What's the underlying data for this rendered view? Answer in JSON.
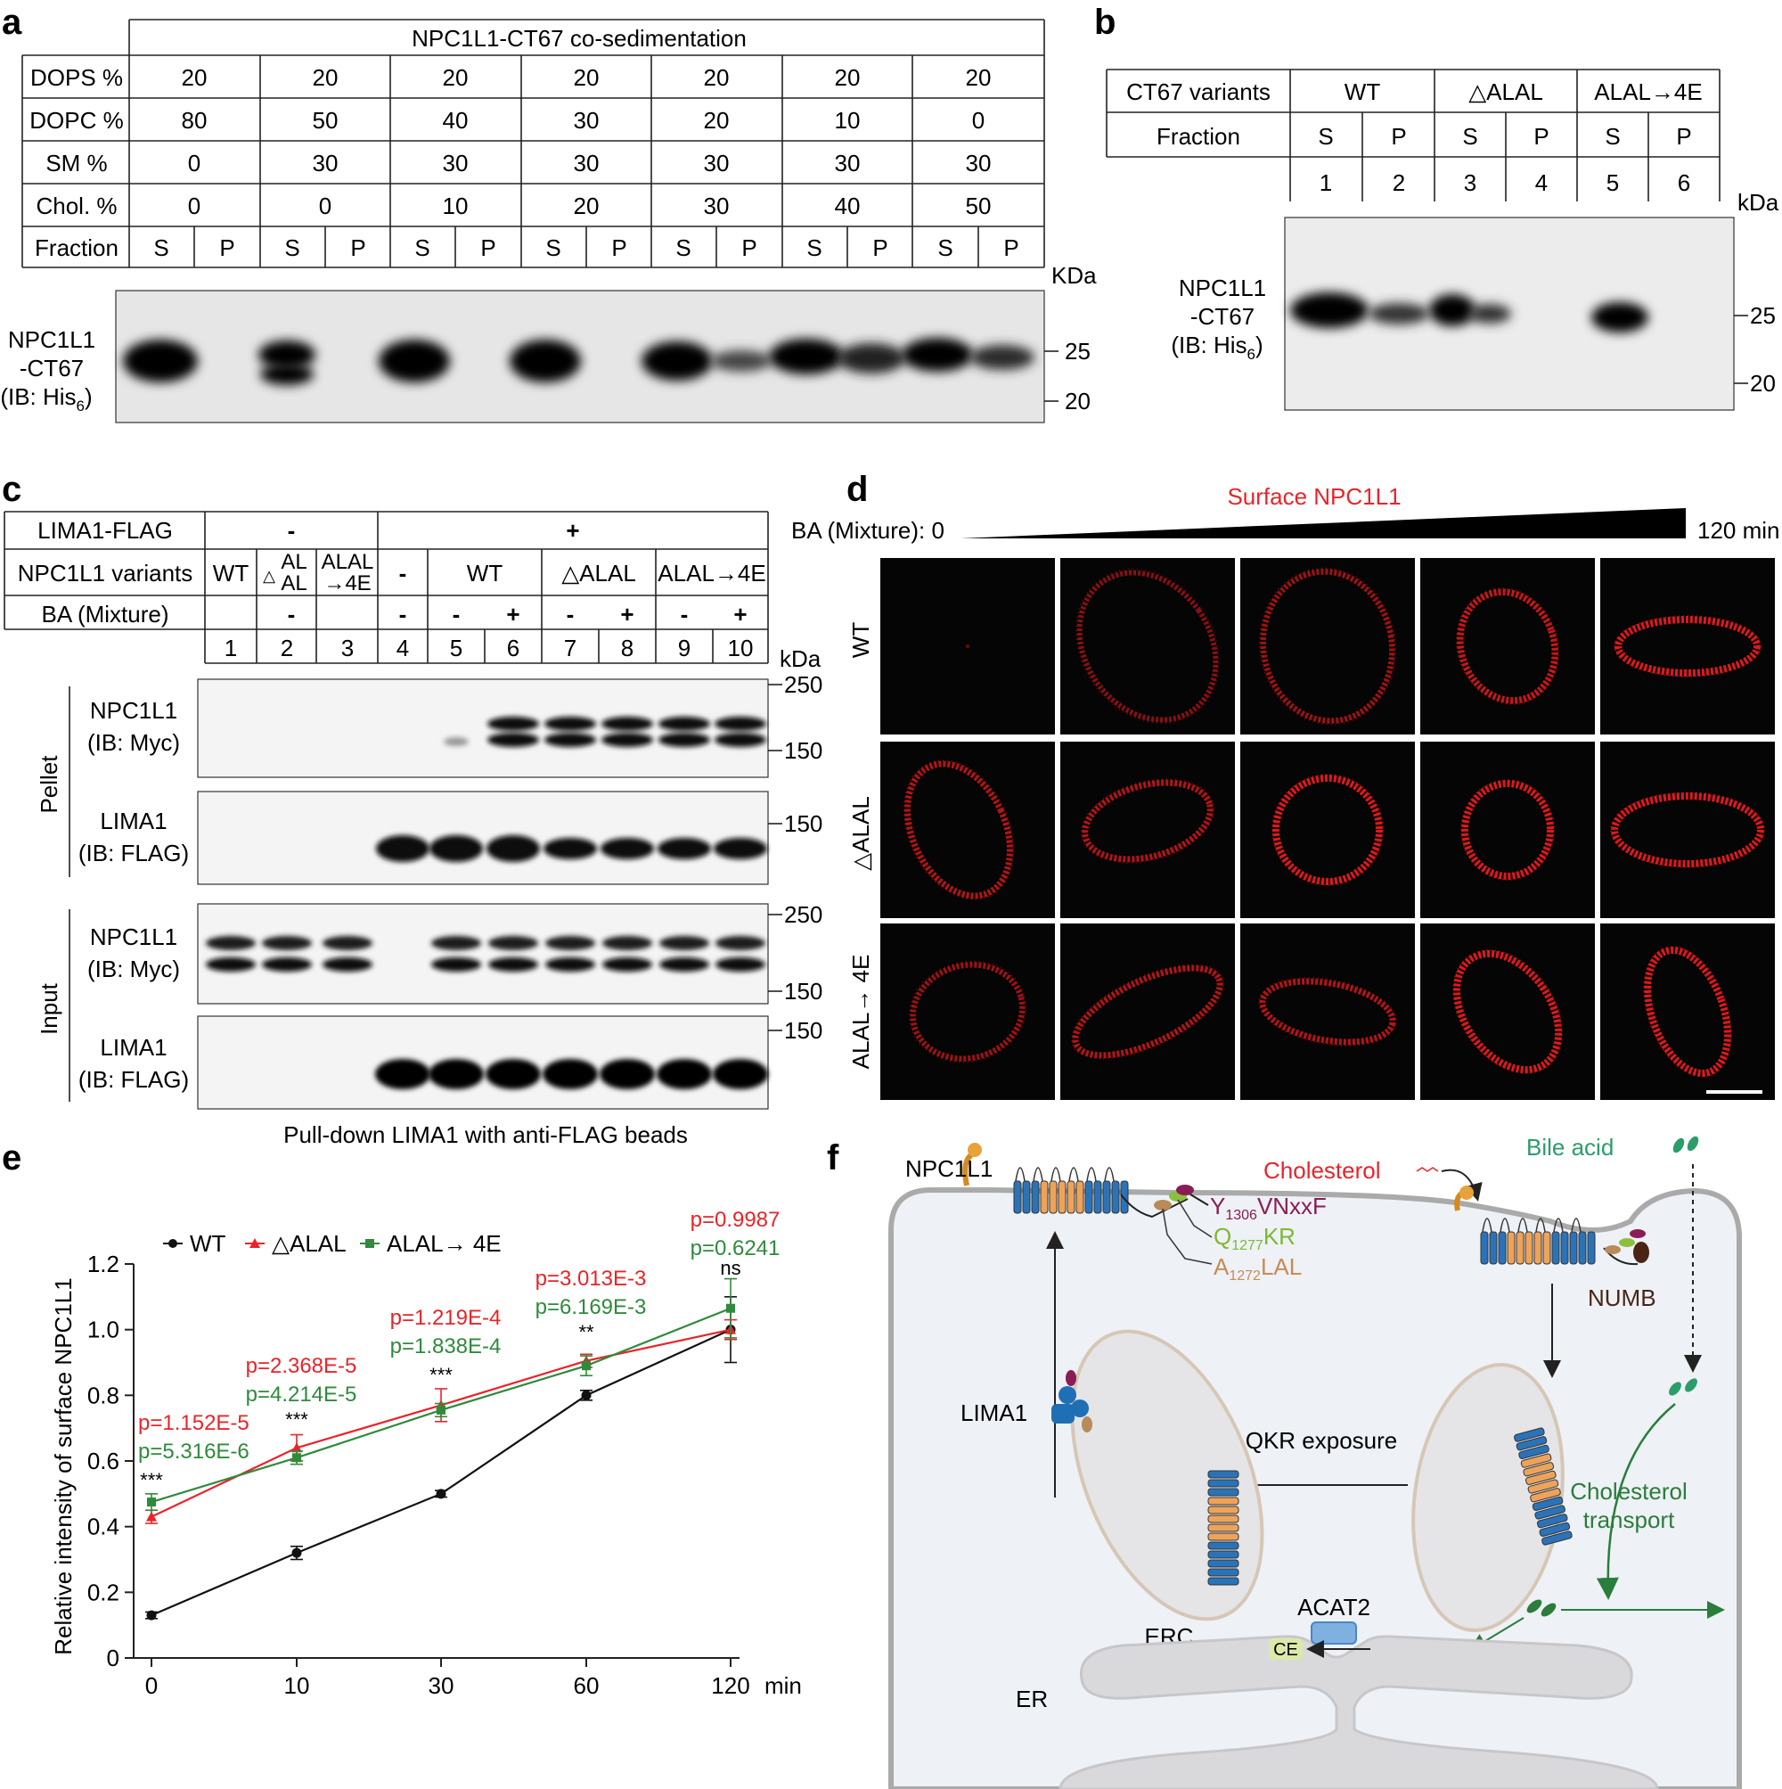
{
  "panel_a": {
    "letter": "a",
    "header": "NPC1L1-CT67 co-sedimentation",
    "row_labels": [
      "DOPS %",
      "DOPC %",
      "SM %",
      "Chol. %",
      "Fraction"
    ],
    "dops": [
      "20",
      "20",
      "20",
      "20",
      "20",
      "20",
      "20"
    ],
    "dopc": [
      "80",
      "50",
      "40",
      "30",
      "20",
      "10",
      "0"
    ],
    "sm": [
      "0",
      "30",
      "30",
      "30",
      "30",
      "30",
      "30"
    ],
    "chol": [
      "0",
      "0",
      "10",
      "20",
      "30",
      "40",
      "50"
    ],
    "fraction": [
      "S",
      "P"
    ],
    "unit": "KDa",
    "mw": [
      "25",
      "20"
    ],
    "blot_label": [
      "NPC1L1",
      "-CT67",
      "(IB: His",
      "6",
      ")"
    ]
  },
  "panel_b": {
    "letter": "b",
    "row_labels": [
      "CT67 variants",
      "Fraction"
    ],
    "variants": [
      "WT",
      "△ALAL",
      "ALAL→4E"
    ],
    "fraction": [
      "S",
      "P"
    ],
    "lanes": [
      "1",
      "2",
      "3",
      "4",
      "5",
      "6"
    ],
    "unit": "kDa",
    "mw": [
      "25",
      "20"
    ],
    "blot_label": [
      "NPC1L1",
      "-CT67",
      "(IB: His",
      "6",
      ")"
    ]
  },
  "panel_c": {
    "letter": "c",
    "row_labels": [
      "LIMA1-FLAG",
      "NPC1L1 variants",
      "BA (Mixture)"
    ],
    "lima_minus": "-",
    "lima_plus": "+",
    "variant_wt": "WT",
    "variant_dalal": [
      "△",
      "AL",
      "AL"
    ],
    "variant_4e": [
      "ALAL",
      "→4E"
    ],
    "variant_minus": "-",
    "variant_dalal2": "△ALAL",
    "variant_4e2": "ALAL→4E",
    "ba": [
      "-",
      "-",
      "-",
      "+",
      "-",
      "+",
      "-",
      "+"
    ],
    "lanes": [
      "1",
      "2",
      "3",
      "4",
      "5",
      "6",
      "7",
      "8",
      "9",
      "10"
    ],
    "unit": "kDa",
    "groups": [
      "Pellet",
      "Input"
    ],
    "blots": [
      {
        "l1": "NPC1L1",
        "l2": "(IB: Myc)",
        "mw_top": "250",
        "mw_bot": "150"
      },
      {
        "l1": "LIMA1",
        "l2": "(IB: FLAG)",
        "mw_top": "150",
        "mw_bot": ""
      },
      {
        "l1": "NPC1L1",
        "l2": "(IB: Myc)",
        "mw_top": "250",
        "mw_bot": "150"
      },
      {
        "l1": "LIMA1",
        "l2": "(IB: FLAG)",
        "mw_top": "150",
        "mw_bot": ""
      }
    ],
    "caption": "Pull-down LIMA1 with anti-FLAG beads"
  },
  "panel_d": {
    "letter": "d",
    "title": "Surface NPC1L1",
    "ba_label": "BA (Mixture): 0",
    "ba_end": "120 min",
    "rows": [
      "WT",
      "△ALAL",
      "ALAL→ 4E"
    ]
  },
  "panel_e": {
    "letter": "e",
    "legend": [
      "WT",
      "△ALAL",
      "ALAL→ 4E"
    ],
    "ylabel": "Relative intensity of surface NPC1L1",
    "xunit": "min",
    "pvals_red": [
      "p=1.152E-5",
      "p=2.368E-5",
      "p=1.219E-4",
      "p=3.013E-3",
      "p=0.9987"
    ],
    "pvals_green": [
      "p=5.316E-6",
      "p=4.214E-5",
      "p=1.838E-4",
      "p=6.169E-3",
      "p=0.6241"
    ],
    "sig": [
      "***",
      "***",
      "***",
      "**",
      "ns"
    ]
  },
  "chart_data": {
    "type": "line",
    "x": [
      0,
      10,
      30,
      60,
      120
    ],
    "xticks": [
      "0",
      "10",
      "30",
      "60",
      "120"
    ],
    "yticks": [
      "0",
      "0.2",
      "0.4",
      "0.6",
      "0.8",
      "1.0",
      "1.2"
    ],
    "ylim": [
      0,
      1.2
    ],
    "ylabel": "Relative intensity of surface NPC1L1",
    "xlabel": "min",
    "series": [
      {
        "name": "WT",
        "color": "#111111",
        "values": [
          0.13,
          0.32,
          0.5,
          0.8,
          1.0
        ],
        "err": [
          0.01,
          0.02,
          0.01,
          0.015,
          0.1
        ]
      },
      {
        "name": "△ALAL",
        "color": "#e8242a",
        "values": [
          0.43,
          0.64,
          0.77,
          0.905,
          1.0
        ],
        "err": [
          0.02,
          0.04,
          0.05,
          0.02,
          0.03
        ]
      },
      {
        "name": "ALAL→ 4E",
        "color": "#2f8a3c",
        "values": [
          0.475,
          0.61,
          0.755,
          0.89,
          1.065
        ],
        "err": [
          0.025,
          0.02,
          0.02,
          0.03,
          0.09
        ]
      }
    ]
  },
  "panel_f": {
    "letter": "f",
    "npc1l1": "NPC1L1",
    "cholesterol": "Cholesterol",
    "bile_acid": "Bile acid",
    "motif1": [
      "Y",
      "1306",
      "VNxxF"
    ],
    "motif2": [
      "Q",
      "1277",
      "KR"
    ],
    "motif3": [
      "A",
      "1272",
      "LAL"
    ],
    "numb": "NUMB",
    "lima1": "LIMA1",
    "qkr": "QKR exposure",
    "erc": "ERC",
    "chol_transport": [
      "Cholesterol",
      "transport"
    ],
    "acat2": "ACAT2",
    "ce": "CE",
    "er": "ER"
  }
}
